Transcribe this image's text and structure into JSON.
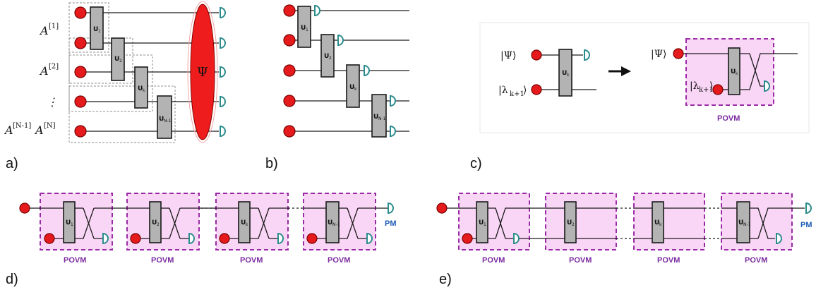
{
  "panels": {
    "a": "a)",
    "b": "b)",
    "c": "c)",
    "d": "d)",
    "e": "e)"
  },
  "sites": {
    "first": "A",
    "first_sup": "[1]",
    "second": "A",
    "second_sup": "[2]",
    "dots": "⋮",
    "last_prev": "A",
    "last_prev_sup": "[N-1]",
    "last": "A",
    "last_sup": "[N]"
  },
  "gates": {
    "base": "U",
    "sub_1": "1",
    "sub_2": "2",
    "sub_k": "k",
    "sub_n1": "N-1"
  },
  "state": {
    "psi": "Ψ",
    "ket_psi": "|Ψ⟩",
    "ket_lambda": "|λ",
    "ket_lambda_sub": "k+1",
    "ket_close": "⟩"
  },
  "labels": {
    "povm": "POVM",
    "pm": "PM"
  },
  "colors": {
    "source": "#e41a1c",
    "gate": "#b3b3b3",
    "detector": "#2a8c8c",
    "povm_fill": "#fad6f6",
    "povm_border": "#9a2aa6",
    "povm_text": "#7b2aa0",
    "pm_text": "#1d5bb5",
    "psi_fill": "#ee1c1c"
  }
}
